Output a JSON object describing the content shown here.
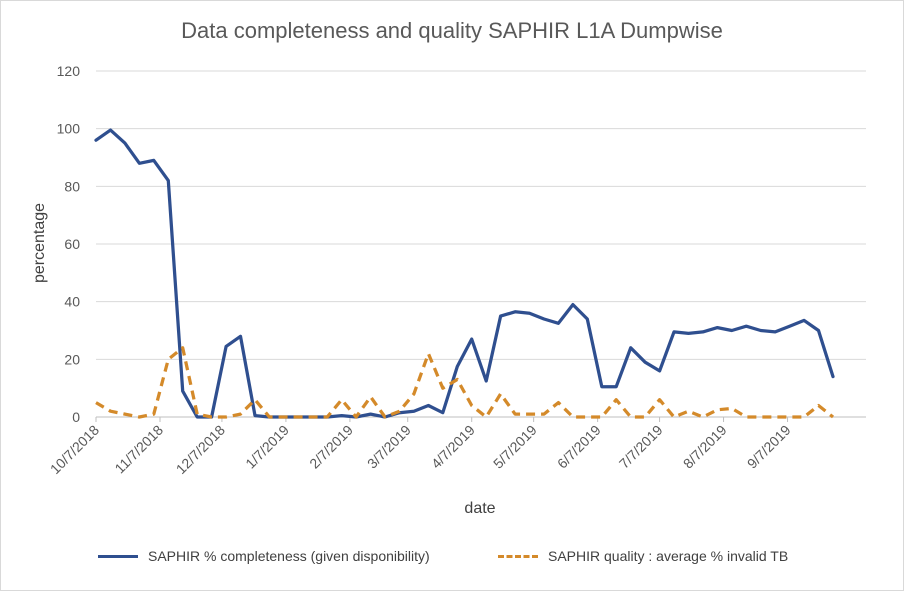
{
  "chart_data": {
    "type": "line",
    "title": "Data completeness and quality SAPHIR L1A Dumpwise",
    "xlabel": "date",
    "ylabel": "percentage",
    "ylim": [
      0,
      120
    ],
    "yticks": [
      0,
      20,
      40,
      60,
      80,
      100,
      120
    ],
    "xlim": [
      "2018-10-07",
      "2019-10-15"
    ],
    "xticks": [
      {
        "date": "2018-10-07",
        "label": "10/7/2018"
      },
      {
        "date": "2018-11-07",
        "label": "11/7/2018"
      },
      {
        "date": "2018-12-07",
        "label": "12/7/2018"
      },
      {
        "date": "2019-01-07",
        "label": "1/7/2019"
      },
      {
        "date": "2019-02-07",
        "label": "2/7/2019"
      },
      {
        "date": "2019-03-07",
        "label": "3/7/2019"
      },
      {
        "date": "2019-04-07",
        "label": "4/7/2019"
      },
      {
        "date": "2019-05-07",
        "label": "5/7/2019"
      },
      {
        "date": "2019-06-07",
        "label": "6/7/2019"
      },
      {
        "date": "2019-07-07",
        "label": "7/7/2019"
      },
      {
        "date": "2019-08-07",
        "label": "8/7/2019"
      },
      {
        "date": "2019-09-07",
        "label": "9/7/2019"
      }
    ],
    "grid": "horizontal",
    "legend": "bottom",
    "series": [
      {
        "name": "SAPHIR % completeness (given disponibility)",
        "color": "#2f4f8f",
        "style": "solid",
        "points": [
          [
            "2018-10-07",
            96
          ],
          [
            "2018-10-14",
            99.5
          ],
          [
            "2018-10-21",
            95
          ],
          [
            "2018-10-28",
            88
          ],
          [
            "2018-11-04",
            89
          ],
          [
            "2018-11-11",
            82
          ],
          [
            "2018-11-18",
            9
          ],
          [
            "2018-11-25",
            0
          ],
          [
            "2018-12-02",
            0
          ],
          [
            "2018-12-09",
            24.5
          ],
          [
            "2018-12-16",
            28
          ],
          [
            "2018-12-23",
            0.5
          ],
          [
            "2018-12-30",
            0
          ],
          [
            "2019-01-06",
            0
          ],
          [
            "2019-01-13",
            0
          ],
          [
            "2019-01-20",
            0
          ],
          [
            "2019-01-27",
            0
          ],
          [
            "2019-02-03",
            0.5
          ],
          [
            "2019-02-10",
            0
          ],
          [
            "2019-02-17",
            1
          ],
          [
            "2019-02-24",
            0
          ],
          [
            "2019-03-03",
            1.5
          ],
          [
            "2019-03-10",
            2
          ],
          [
            "2019-03-17",
            4
          ],
          [
            "2019-03-24",
            1.5
          ],
          [
            "2019-03-31",
            17.5
          ],
          [
            "2019-04-07",
            27
          ],
          [
            "2019-04-14",
            12.5
          ],
          [
            "2019-04-21",
            35
          ],
          [
            "2019-04-28",
            36.5
          ],
          [
            "2019-05-05",
            36
          ],
          [
            "2019-05-12",
            34
          ],
          [
            "2019-05-19",
            32.5
          ],
          [
            "2019-05-26",
            39
          ],
          [
            "2019-06-02",
            34
          ],
          [
            "2019-06-09",
            10.5
          ],
          [
            "2019-06-16",
            10.5
          ],
          [
            "2019-06-23",
            24
          ],
          [
            "2019-06-30",
            19
          ],
          [
            "2019-07-07",
            16
          ],
          [
            "2019-07-14",
            29.5
          ],
          [
            "2019-07-21",
            29
          ],
          [
            "2019-07-28",
            29.5
          ],
          [
            "2019-08-04",
            31
          ],
          [
            "2019-08-11",
            30
          ],
          [
            "2019-08-18",
            31.5
          ],
          [
            "2019-08-25",
            30
          ],
          [
            "2019-09-01",
            29.5
          ],
          [
            "2019-09-08",
            31.5
          ],
          [
            "2019-09-15",
            33.5
          ],
          [
            "2019-09-22",
            30
          ],
          [
            "2019-09-29",
            14
          ]
        ]
      },
      {
        "name": "SAPHIR quality :  average % invalid  TB",
        "color": "#d48a2a",
        "style": "dashed",
        "points": [
          [
            "2018-10-07",
            5
          ],
          [
            "2018-10-14",
            2
          ],
          [
            "2018-10-21",
            1
          ],
          [
            "2018-10-28",
            0
          ],
          [
            "2018-11-04",
            1
          ],
          [
            "2018-11-11",
            20
          ],
          [
            "2018-11-18",
            24
          ],
          [
            "2018-11-25",
            1
          ],
          [
            "2018-12-02",
            0
          ],
          [
            "2018-12-09",
            0
          ],
          [
            "2018-12-16",
            1
          ],
          [
            "2018-12-23",
            6
          ],
          [
            "2018-12-30",
            0
          ],
          [
            "2019-01-06",
            0
          ],
          [
            "2019-01-13",
            0
          ],
          [
            "2019-01-20",
            0
          ],
          [
            "2019-01-27",
            0
          ],
          [
            "2019-02-03",
            6
          ],
          [
            "2019-02-10",
            0
          ],
          [
            "2019-02-17",
            7
          ],
          [
            "2019-02-24",
            0
          ],
          [
            "2019-03-03",
            2
          ],
          [
            "2019-03-10",
            8
          ],
          [
            "2019-03-17",
            22
          ],
          [
            "2019-03-24",
            10
          ],
          [
            "2019-03-31",
            13
          ],
          [
            "2019-04-07",
            4
          ],
          [
            "2019-04-14",
            0
          ],
          [
            "2019-04-21",
            8
          ],
          [
            "2019-04-28",
            1
          ],
          [
            "2019-05-05",
            1
          ],
          [
            "2019-05-12",
            1
          ],
          [
            "2019-05-19",
            5
          ],
          [
            "2019-05-26",
            0
          ],
          [
            "2019-06-02",
            0
          ],
          [
            "2019-06-09",
            0
          ],
          [
            "2019-06-16",
            6
          ],
          [
            "2019-06-23",
            0
          ],
          [
            "2019-06-30",
            0
          ],
          [
            "2019-07-07",
            6
          ],
          [
            "2019-07-14",
            0
          ],
          [
            "2019-07-21",
            2
          ],
          [
            "2019-07-28",
            0
          ],
          [
            "2019-08-04",
            2.5
          ],
          [
            "2019-08-11",
            3
          ],
          [
            "2019-08-18",
            0
          ],
          [
            "2019-08-25",
            0
          ],
          [
            "2019-09-01",
            0
          ],
          [
            "2019-09-08",
            0
          ],
          [
            "2019-09-15",
            0
          ],
          [
            "2019-09-22",
            4
          ],
          [
            "2019-09-29",
            0
          ]
        ]
      }
    ]
  }
}
